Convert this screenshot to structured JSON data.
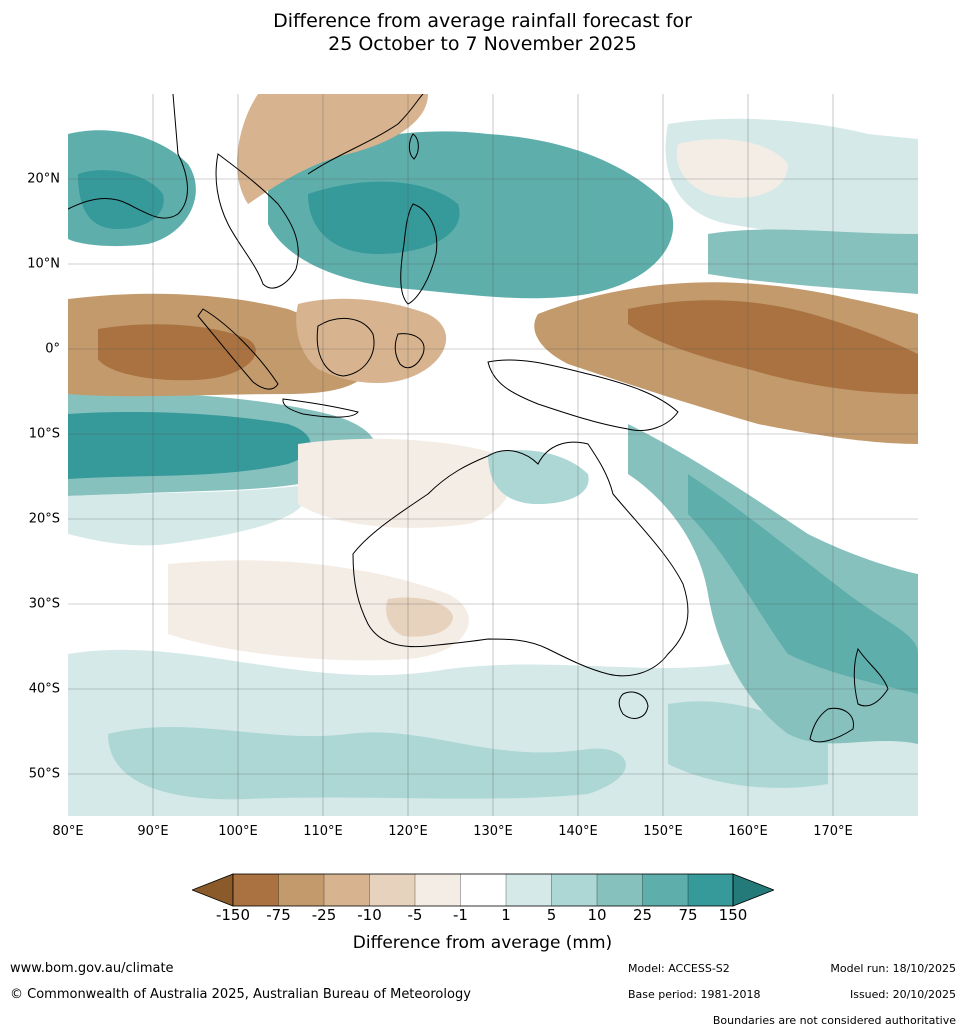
{
  "title": {
    "line1": "Difference from average rainfall forecast for",
    "line2": "25 October to 7 November 2025"
  },
  "map": {
    "lat_labels": [
      "20°N",
      "10°N",
      "0°",
      "10°S",
      "20°S",
      "30°S",
      "40°S",
      "50°S"
    ],
    "lon_labels": [
      "80°E",
      "90°E",
      "100°E",
      "110°E",
      "120°E",
      "130°E",
      "140°E",
      "150°E",
      "160°E",
      "170°E"
    ]
  },
  "legend": {
    "ticks": [
      "-150",
      "-75",
      "-25",
      "-10",
      "-5",
      "-1",
      "1",
      "5",
      "10",
      "25",
      "75",
      "150"
    ],
    "colors": [
      "#8a5a2b",
      "#a97240",
      "#c39a6b",
      "#d7b48f",
      "#e6d2bd",
      "#f4ede6",
      "#ffffff",
      "#d5e9e8",
      "#add7d5",
      "#86c1be",
      "#5eaeab",
      "#36999a",
      "#237a78"
    ],
    "title": "Difference from average (mm)"
  },
  "footer": {
    "url": "www.bom.gov.au/climate",
    "copyright": "© Commonwealth of Australia 2025, Australian Bureau of Meteorology",
    "model": "Model: ACCESS-S2",
    "base_period": "Base period: 1981-2018",
    "model_run": "Model run: 18/10/2025",
    "issued": "Issued: 20/10/2025",
    "boundaries": "Boundaries are not considered authoritative"
  }
}
